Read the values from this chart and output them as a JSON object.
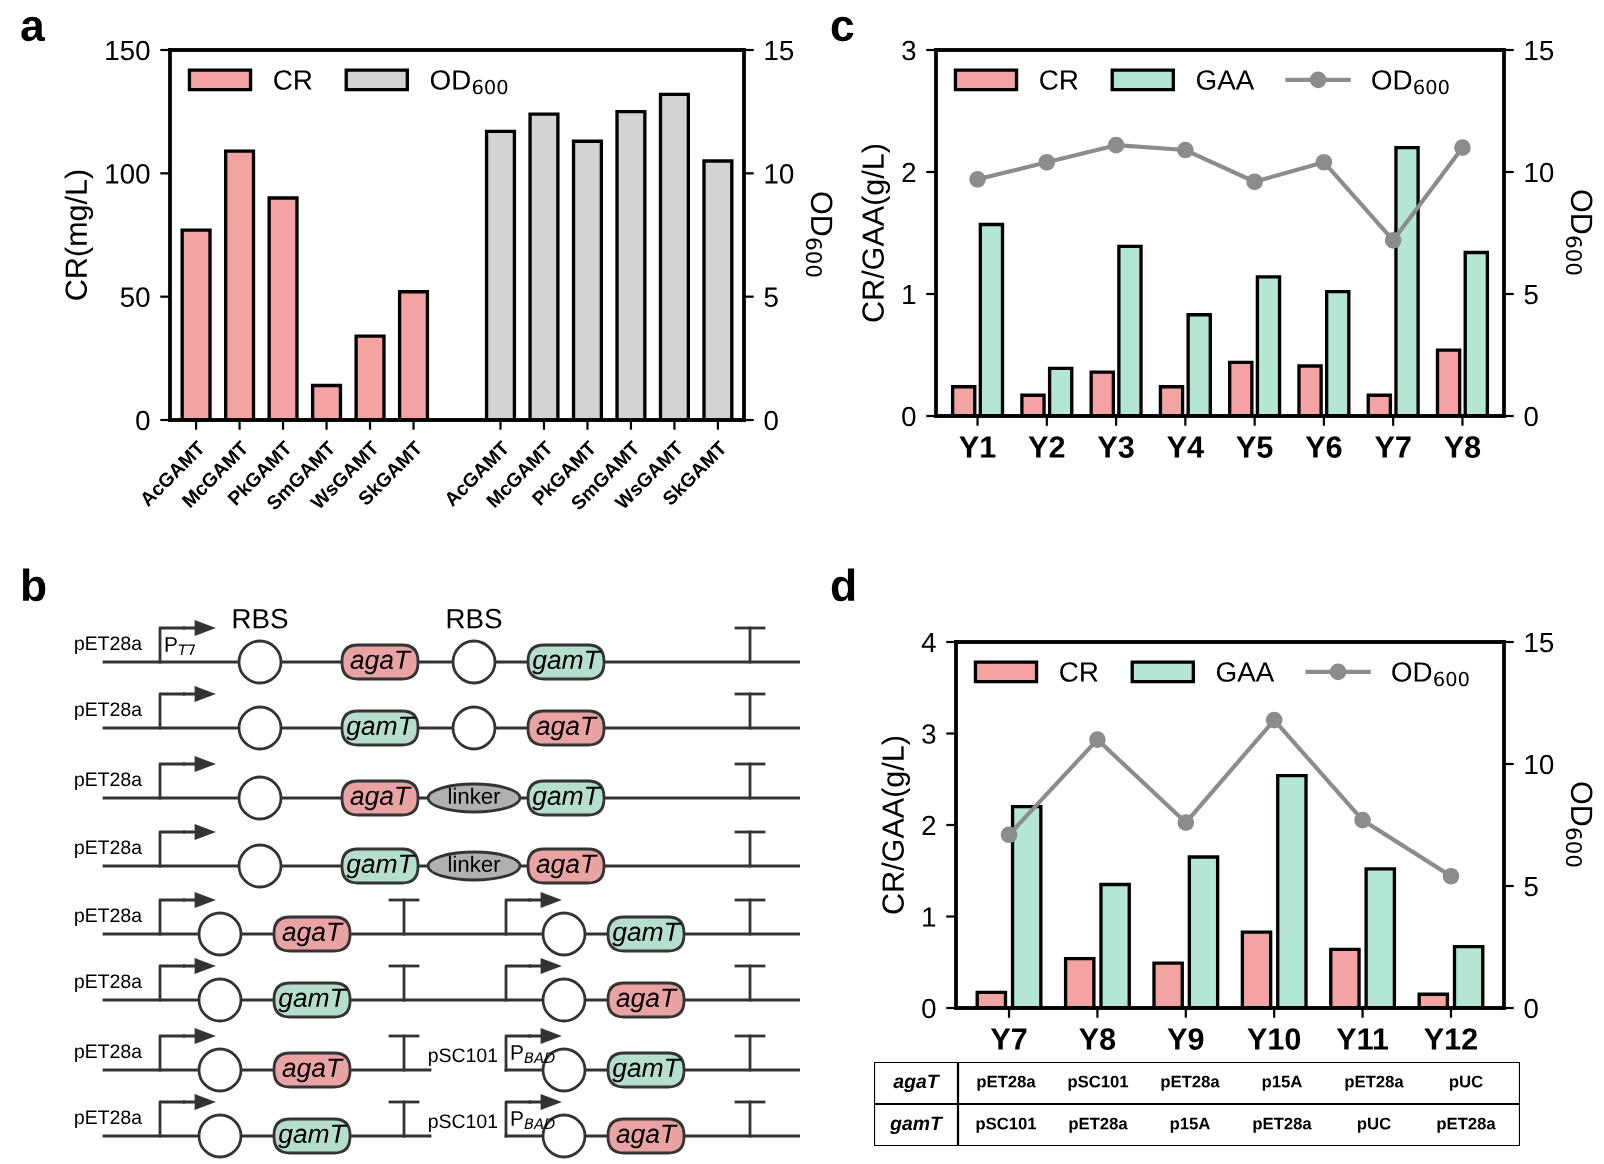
{
  "chart_data": [
    {
      "type": "bar",
      "title": "a",
      "categories": [
        "AcGAMT",
        "McGAMT",
        "PkGAMT",
        "SmGAMT",
        "WsGAMT",
        "SkGAMT",
        null,
        "AcGAMT",
        "McGAMT",
        "PkGAMT",
        "SmGAMT",
        "WsGAMT",
        "SkGAMT"
      ],
      "series": [
        {
          "name": "CR",
          "color": "#f4a3a3",
          "values": [
            77,
            109,
            90,
            14,
            34,
            52,
            null,
            null,
            null,
            null,
            null,
            null,
            null
          ]
        },
        {
          "name": "OD$_{600}$",
          "color": "#d3d3d3",
          "axis": "y2",
          "values": [
            null,
            null,
            null,
            null,
            null,
            null,
            null,
            11.7,
            12.4,
            11.3,
            12.5,
            13.2,
            10.5
          ]
        }
      ],
      "ylabel": "CR(mg/L)",
      "y2label": "OD$_{600}$",
      "ylim": [
        0,
        150
      ],
      "yticks": [
        0,
        50,
        100,
        150
      ],
      "y2lim": [
        0,
        15
      ],
      "y2ticks": [
        0,
        5,
        10,
        15
      ],
      "legend": "top left",
      "grid": false
    },
    {
      "type": "bar",
      "title": "c",
      "categories": [
        "Y1",
        "Y2",
        "Y3",
        "Y4",
        "Y5",
        "Y6",
        "Y7",
        "Y8"
      ],
      "series": [
        {
          "name": "CR",
          "color": "#f4a3a3",
          "values": [
            0.24,
            0.17,
            0.36,
            0.24,
            0.44,
            0.41,
            0.17,
            0.54
          ]
        },
        {
          "name": "GAA",
          "color": "#b3e6d3",
          "values": [
            1.57,
            0.39,
            1.39,
            0.83,
            1.14,
            1.02,
            2.2,
            1.34
          ]
        },
        {
          "name": "OD$_{600}$",
          "color": "#8c8c8c",
          "type": "line",
          "axis": "y2",
          "marker": "circle",
          "values": [
            9.7,
            10.4,
            11.1,
            10.9,
            9.6,
            10.4,
            7.2,
            11.0
          ]
        }
      ],
      "ylabel": "CR/GAA(g/L)",
      "y2label": "OD$_{600}$",
      "ylim": [
        0,
        3
      ],
      "yticks": [
        0,
        1,
        2,
        3
      ],
      "y2lim": [
        0,
        15
      ],
      "y2ticks": [
        0,
        5,
        10,
        15
      ],
      "legend": "top left",
      "grid": false
    },
    {
      "type": "other",
      "title": "b",
      "annotations": [
        "pET28a",
        "P$_{T7}$",
        "RBS",
        "agaT",
        "RBS",
        "gamT",
        "pET28a",
        "gamT",
        "agaT",
        "pET28a",
        "agaT",
        "linker",
        "gamT",
        "pET28a",
        "gamT",
        "linker",
        "agaT",
        "pET28a",
        "agaT",
        "gamT",
        "pET28a",
        "gamT",
        "agaT",
        "pET28a",
        "agaT",
        "pSC101",
        "P$_{BAD}$",
        "gamT",
        "pET28a",
        "gamT",
        "pSC101",
        "P$_{BAD}$",
        "agaT"
      ]
    },
    {
      "type": "bar",
      "title": "d",
      "categories": [
        "Y7",
        "Y8",
        "Y9",
        "Y10",
        "Y11",
        "Y12"
      ],
      "series": [
        {
          "name": "CR",
          "color": "#f4a3a3",
          "values": [
            0.17,
            0.54,
            0.49,
            0.83,
            0.64,
            0.15
          ]
        },
        {
          "name": "GAA",
          "color": "#b3e6d3",
          "values": [
            2.2,
            1.35,
            1.65,
            2.54,
            1.52,
            0.67
          ]
        },
        {
          "name": "OD$_{600}$",
          "color": "#8c8c8c",
          "type": "line",
          "axis": "y2",
          "marker": "circle",
          "values": [
            7.1,
            11.0,
            7.6,
            11.8,
            7.7,
            5.4
          ]
        }
      ],
      "ylabel": "CR/GAA(g/L)",
      "y2label": "OD$_{600}$",
      "ylim": [
        0,
        4
      ],
      "yticks": [
        0,
        1,
        2,
        3,
        4
      ],
      "y2lim": [
        0,
        15
      ],
      "y2ticks": [
        0,
        5,
        10,
        15
      ],
      "legend": "top left",
      "grid": false,
      "annotations": [
        "agaT",
        "pET28a",
        "pSC101",
        "pET28a",
        "p15A",
        "pET28a",
        "pUC",
        "gamT",
        "pSC101",
        "pET28a",
        "p15A",
        "pET28a",
        "pUC",
        "pET28a"
      ]
    }
  ]
}
